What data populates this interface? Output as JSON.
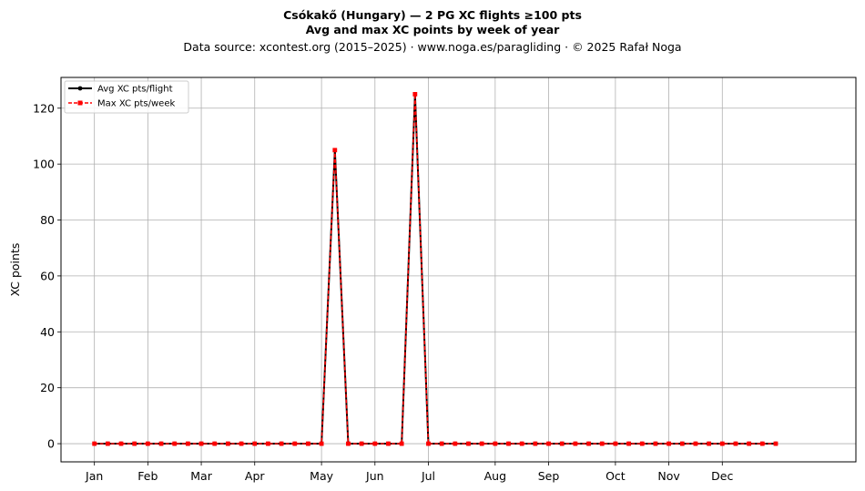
{
  "chart_data": {
    "type": "line",
    "title_line1": "Csókakő (Hungary)  —  2 PG XC flights ≥100 pts",
    "title_line2": "Avg and max XC points by week of year",
    "subtitle": "Data source: xcontest.org (2015–2025)  ·  www.noga.es/paragliding  ·  © 2025 Rafał Noga",
    "xlabel": "",
    "ylabel": "XC points",
    "xlim": [
      -2.5,
      57
    ],
    "ylim": [
      -6.5,
      131
    ],
    "yticks": [
      0,
      20,
      40,
      60,
      80,
      100,
      120
    ],
    "grid": true,
    "legend_position": "top-left",
    "x_tick_labels": [
      {
        "label": "Jan",
        "week": 0
      },
      {
        "label": "Feb",
        "week": 4
      },
      {
        "label": "Mar",
        "week": 8
      },
      {
        "label": "Apr",
        "week": 12
      },
      {
        "label": "May",
        "week": 17
      },
      {
        "label": "Jun",
        "week": 21
      },
      {
        "label": "Jul",
        "week": 25
      },
      {
        "label": "Aug",
        "week": 30
      },
      {
        "label": "Sep",
        "week": 34
      },
      {
        "label": "Oct",
        "week": 39
      },
      {
        "label": "Nov",
        "week": 43
      },
      {
        "label": "Dec",
        "week": 47
      }
    ],
    "x": [
      0,
      1,
      2,
      3,
      4,
      5,
      6,
      7,
      8,
      9,
      10,
      11,
      12,
      13,
      14,
      15,
      16,
      17,
      18,
      19,
      20,
      21,
      22,
      23,
      24,
      25,
      26,
      27,
      28,
      29,
      30,
      31,
      32,
      33,
      34,
      35,
      36,
      37,
      38,
      39,
      40,
      41,
      42,
      43,
      44,
      45,
      46,
      47,
      48,
      49,
      50,
      51
    ],
    "series": [
      {
        "name": "Avg XC pts/flight",
        "color": "#000000",
        "values": [
          0,
          0,
          0,
          0,
          0,
          0,
          0,
          0,
          0,
          0,
          0,
          0,
          0,
          0,
          0,
          0,
          0,
          0,
          105,
          0,
          0,
          0,
          0,
          0,
          125,
          0,
          0,
          0,
          0,
          0,
          0,
          0,
          0,
          0,
          0,
          0,
          0,
          0,
          0,
          0,
          0,
          0,
          0,
          0,
          0,
          0,
          0,
          0,
          0,
          0,
          0,
          0
        ]
      },
      {
        "name": "Max XC pts/week",
        "color": "#ff0000",
        "values": [
          0,
          0,
          0,
          0,
          0,
          0,
          0,
          0,
          0,
          0,
          0,
          0,
          0,
          0,
          0,
          0,
          0,
          0,
          105,
          0,
          0,
          0,
          0,
          0,
          125,
          0,
          0,
          0,
          0,
          0,
          0,
          0,
          0,
          0,
          0,
          0,
          0,
          0,
          0,
          0,
          0,
          0,
          0,
          0,
          0,
          0,
          0,
          0,
          0,
          0,
          0,
          0
        ]
      }
    ]
  }
}
